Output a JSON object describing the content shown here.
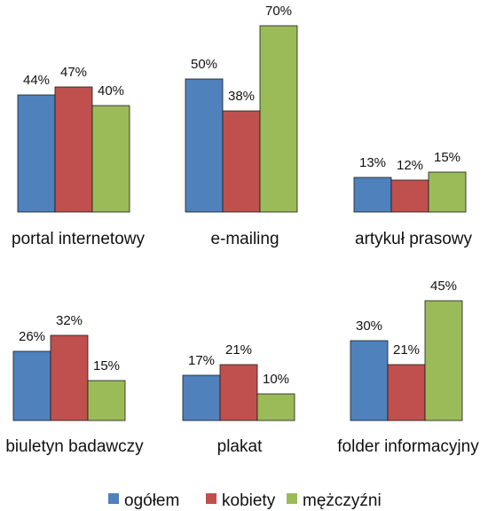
{
  "chart_data": {
    "type": "bar",
    "unit": "%",
    "series": [
      {
        "name": "ogółem",
        "color": "#4f81bd"
      },
      {
        "name": "kobiety",
        "color": "#c0504d"
      },
      {
        "name": "mężczyźni",
        "color": "#9bbb59"
      }
    ],
    "panels": [
      {
        "category": "portal internetowy",
        "values": [
          44,
          47,
          40
        ]
      },
      {
        "category": "e-mailing",
        "values": [
          50,
          38,
          70
        ]
      },
      {
        "category": "artykuł prasowy",
        "values": [
          13,
          12,
          15
        ]
      },
      {
        "category": "biuletyn badawczy",
        "values": [
          26,
          32,
          15
        ]
      },
      {
        "category": "plakat",
        "values": [
          17,
          21,
          10
        ]
      },
      {
        "category": "folder informacyjny",
        "values": [
          30,
          21,
          45
        ]
      }
    ],
    "legend_position": "bottom"
  }
}
